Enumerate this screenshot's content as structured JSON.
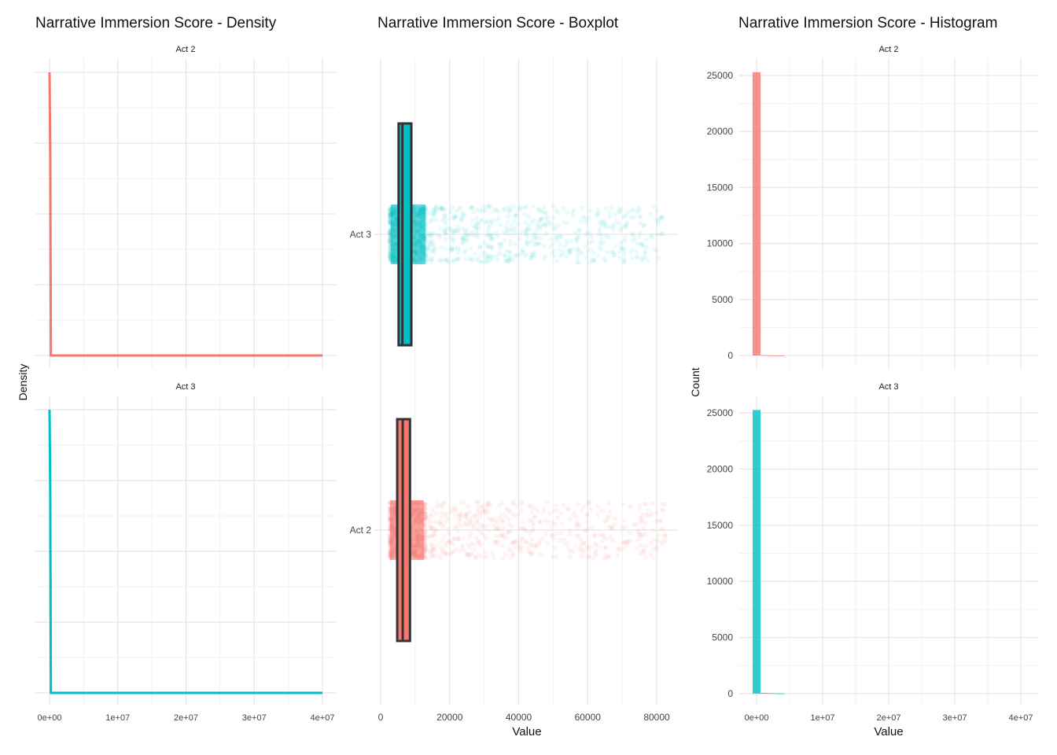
{
  "chart_data": [
    {
      "type": "line",
      "title": "Narrative Immersion Score - Density",
      "xlabel": "",
      "ylabel": "Density",
      "facets": [
        "Act 2",
        "Act 3"
      ],
      "x_ticks": [
        "0e+00",
        "1e+07",
        "2e+07",
        "3e+07",
        "4e+07"
      ],
      "x_tick_values": [
        0,
        10000000,
        20000000,
        30000000,
        40000000
      ],
      "xlim": [
        0,
        40000000
      ],
      "y_ticks_shown": false,
      "series": [
        {
          "name": "Act 2",
          "color": "#F8766D",
          "x": [
            0,
            100000,
            200000,
            40000000
          ],
          "y": [
            1.0,
            0.7,
            0.0,
            0.0
          ]
        },
        {
          "name": "Act 3",
          "color": "#00BFC4",
          "x": [
            0,
            100000,
            200000,
            40000000
          ],
          "y": [
            1.0,
            0.7,
            0.0,
            0.0
          ]
        }
      ],
      "grid": true,
      "legend": "none"
    },
    {
      "type": "box",
      "title": "Narrative Immersion Score - Boxplot",
      "xlabel": "Value",
      "ylabel": "",
      "categories": [
        "Act 3",
        "Act 2"
      ],
      "x_ticks": [
        "0",
        "20000",
        "40000",
        "60000",
        "80000"
      ],
      "x_tick_values": [
        0,
        20000,
        40000,
        60000,
        80000
      ],
      "xlim": [
        -3000,
        87000
      ],
      "boxes": [
        {
          "name": "Act 3",
          "color": "#00BFC4",
          "q1": 5200,
          "median": 6300,
          "q3": 8900,
          "lower": 4300,
          "upper": 13000,
          "points_min": 2600,
          "points_max": 82000
        },
        {
          "name": "Act 2",
          "color": "#F8766D",
          "q1": 4800,
          "median": 6400,
          "q3": 8500,
          "lower": 4100,
          "upper": 12500,
          "points_min": 2600,
          "points_max": 83000
        }
      ],
      "grid": true,
      "legend": "none"
    },
    {
      "type": "bar",
      "title": "Narrative Immersion Score - Histogram",
      "xlabel": "Value",
      "ylabel": "Count",
      "facets": [
        "Act 2",
        "Act 3"
      ],
      "x_ticks": [
        "0e+00",
        "1e+07",
        "2e+07",
        "3e+07",
        "4e+07"
      ],
      "x_tick_values": [
        0,
        10000000,
        20000000,
        30000000,
        40000000
      ],
      "xlim": [
        0,
        40000000
      ],
      "y_ticks": [
        "0",
        "5000",
        "10000",
        "15000",
        "20000",
        "25000"
      ],
      "y_tick_values": [
        0,
        5000,
        10000,
        15000,
        20000,
        25000
      ],
      "ylim": [
        0,
        26000
      ],
      "series": [
        {
          "name": "Act 2",
          "color": "#F8766D",
          "bins": [
            [
              -600000,
              600000,
              25300
            ],
            [
              600000,
              1800000,
              30
            ],
            [
              1800000,
              3000000,
              10
            ],
            [
              3000000,
              4200000,
              3
            ]
          ]
        },
        {
          "name": "Act 3",
          "color": "#00BFC4",
          "bins": [
            [
              -600000,
              600000,
              25250
            ],
            [
              600000,
              1800000,
              60
            ],
            [
              1800000,
              3000000,
              40
            ],
            [
              3000000,
              4200000,
              15
            ]
          ]
        }
      ],
      "grid": true,
      "legend": "none"
    }
  ]
}
